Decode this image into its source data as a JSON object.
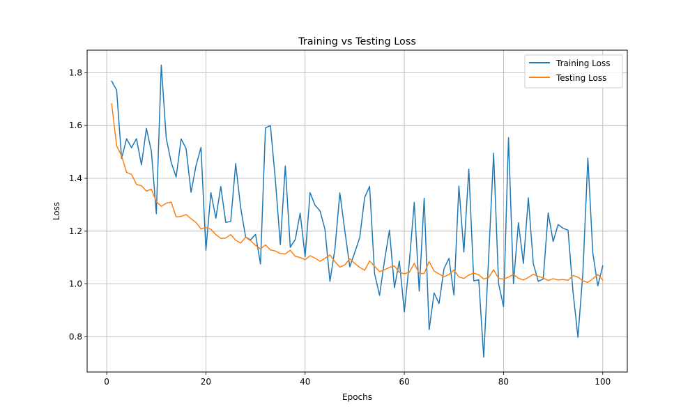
{
  "chart_data": {
    "type": "line",
    "title": "Training vs Testing Loss",
    "xlabel": "Epochs",
    "ylabel": "Loss",
    "xlim": [
      -3.95,
      104.95
    ],
    "ylim": [
      0.6667,
      1.8854
    ],
    "x_ticks": [
      0,
      20,
      40,
      60,
      80,
      100
    ],
    "y_ticks": [
      0.8,
      1.0,
      1.2,
      1.4,
      1.6,
      1.8
    ],
    "x_tick_labels": [
      "0",
      "20",
      "40",
      "60",
      "80",
      "100"
    ],
    "y_tick_labels": [
      "0.8",
      "1.0",
      "1.2",
      "1.4",
      "1.6",
      "1.8"
    ],
    "grid": true,
    "legend_position": "top-right",
    "x": [
      1,
      2,
      3,
      4,
      5,
      6,
      7,
      8,
      9,
      10,
      11,
      12,
      13,
      14,
      15,
      16,
      17,
      18,
      19,
      20,
      21,
      22,
      23,
      24,
      25,
      26,
      27,
      28,
      29,
      30,
      31,
      32,
      33,
      34,
      35,
      36,
      37,
      38,
      39,
      40,
      41,
      42,
      43,
      44,
      45,
      46,
      47,
      48,
      49,
      50,
      51,
      52,
      53,
      54,
      55,
      56,
      57,
      58,
      59,
      60,
      61,
      62,
      63,
      64,
      65,
      66,
      67,
      68,
      69,
      70,
      71,
      72,
      73,
      74,
      75,
      76,
      77,
      78,
      79,
      80,
      81,
      82,
      83,
      84,
      85,
      86,
      87,
      88,
      89,
      90,
      91,
      92,
      93,
      94,
      95,
      96,
      97,
      98,
      99,
      100
    ],
    "series": [
      {
        "name": "Training Loss",
        "color": "#1f77b4",
        "values": [
          1.768,
          1.734,
          1.475,
          1.55,
          1.516,
          1.55,
          1.451,
          1.589,
          1.503,
          1.266,
          1.829,
          1.552,
          1.46,
          1.405,
          1.549,
          1.513,
          1.347,
          1.448,
          1.517,
          1.128,
          1.346,
          1.249,
          1.369,
          1.233,
          1.237,
          1.456,
          1.289,
          1.178,
          1.167,
          1.188,
          1.076,
          1.591,
          1.6,
          1.394,
          1.149,
          1.447,
          1.139,
          1.168,
          1.268,
          1.103,
          1.346,
          1.298,
          1.277,
          1.207,
          1.01,
          1.131,
          1.345,
          1.202,
          1.065,
          1.119,
          1.175,
          1.327,
          1.37,
          1.04,
          0.957,
          1.088,
          1.204,
          0.986,
          1.087,
          0.894,
          1.08,
          1.309,
          0.973,
          1.325,
          0.827,
          0.966,
          0.926,
          1.058,
          1.097,
          0.958,
          1.371,
          1.121,
          1.435,
          1.012,
          1.016,
          0.723,
          1.101,
          1.495,
          1.002,
          0.914,
          1.554,
          1.001,
          1.232,
          1.078,
          1.326,
          1.077,
          1.01,
          1.019,
          1.269,
          1.161,
          1.225,
          1.211,
          1.204,
          0.972,
          0.798,
          1.044,
          1.477,
          1.117,
          0.993,
          1.069
        ]
      },
      {
        "name": "Testing Loss",
        "color": "#ff7f0e",
        "values": [
          1.682,
          1.523,
          1.485,
          1.423,
          1.415,
          1.377,
          1.372,
          1.352,
          1.359,
          1.312,
          1.294,
          1.306,
          1.31,
          1.254,
          1.256,
          1.263,
          1.247,
          1.233,
          1.209,
          1.214,
          1.207,
          1.187,
          1.173,
          1.174,
          1.187,
          1.166,
          1.155,
          1.177,
          1.164,
          1.146,
          1.133,
          1.148,
          1.129,
          1.125,
          1.115,
          1.114,
          1.128,
          1.105,
          1.1,
          1.092,
          1.107,
          1.098,
          1.086,
          1.097,
          1.11,
          1.085,
          1.064,
          1.072,
          1.096,
          1.078,
          1.063,
          1.052,
          1.087,
          1.067,
          1.047,
          1.054,
          1.063,
          1.068,
          1.044,
          1.039,
          1.044,
          1.078,
          1.04,
          1.04,
          1.085,
          1.049,
          1.038,
          1.027,
          1.036,
          1.053,
          1.027,
          1.021,
          1.034,
          1.041,
          1.035,
          1.019,
          1.025,
          1.054,
          1.021,
          1.019,
          1.026,
          1.036,
          1.022,
          1.015,
          1.025,
          1.037,
          1.029,
          1.023,
          1.013,
          1.02,
          1.015,
          1.017,
          1.014,
          1.032,
          1.026,
          1.012,
          1.006,
          1.02,
          1.036,
          1.015
        ]
      }
    ]
  }
}
